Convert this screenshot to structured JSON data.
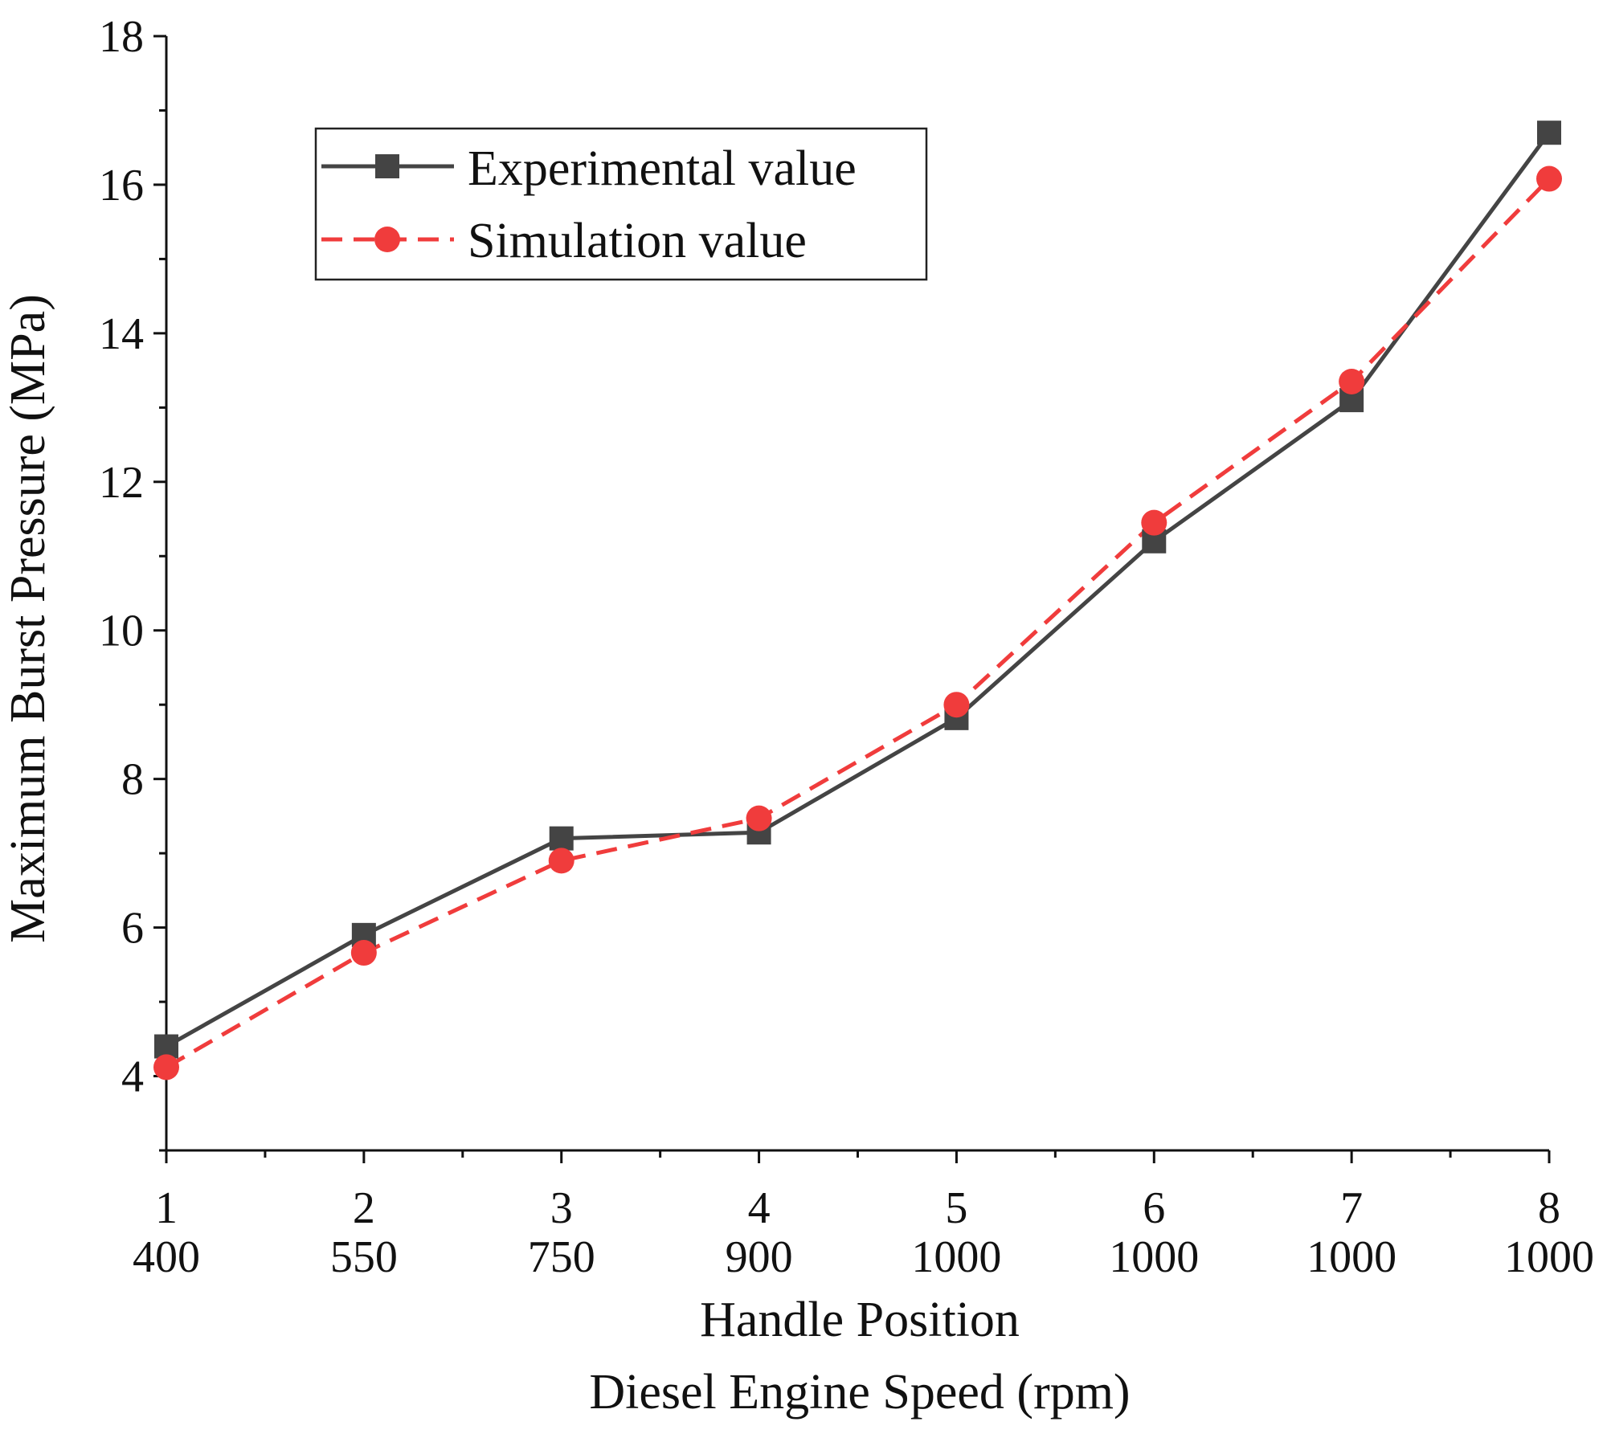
{
  "chart_data": {
    "type": "line",
    "xlabel": "Handle Position",
    "xlabel2": "Diesel Engine Speed (rpm)",
    "ylabel": "Maximum Burst Pressure  (MPa)",
    "ylim": [
      3,
      18
    ],
    "xlim": [
      1,
      8
    ],
    "yticks": [
      4,
      6,
      8,
      10,
      12,
      14,
      16,
      18
    ],
    "x": [
      1,
      2,
      3,
      4,
      5,
      6,
      7,
      8
    ],
    "x_labels_line1": [
      "1",
      "2",
      "3",
      "4",
      "5",
      "6",
      "7",
      "8"
    ],
    "x_labels_line2": [
      "400",
      "550",
      "750",
      "900",
      "1000",
      "1000",
      "1000",
      "1000"
    ],
    "legend_position": "upper-left",
    "series": [
      {
        "name": "Experimental value",
        "marker": "square",
        "line_style": "solid",
        "color": "#444444",
        "values": [
          4.4,
          5.9,
          7.2,
          7.28,
          8.82,
          11.2,
          13.1,
          16.7
        ]
      },
      {
        "name": "Simulation value",
        "marker": "circle",
        "line_style": "dashed",
        "color": "#f03c3c",
        "values": [
          4.12,
          5.66,
          6.9,
          7.47,
          9.0,
          11.45,
          13.35,
          16.08
        ]
      }
    ]
  }
}
